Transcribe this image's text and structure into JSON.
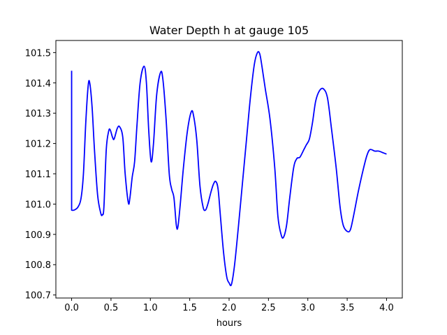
{
  "chart_data": {
    "type": "line",
    "title": "Water Depth h at gauge 105",
    "xlabel": "hours",
    "ylabel": "",
    "xlim": [
      -0.2,
      4.2
    ],
    "ylim": [
      100.69,
      101.54
    ],
    "grid": false,
    "xticks": [
      0.0,
      0.5,
      1.0,
      1.5,
      2.0,
      2.5,
      3.0,
      3.5,
      4.0
    ],
    "xtick_labels": [
      "0.0",
      "0.5",
      "1.0",
      "1.5",
      "2.0",
      "2.5",
      "3.0",
      "3.5",
      "4.0"
    ],
    "yticks": [
      100.7,
      100.8,
      100.9,
      101.0,
      101.1,
      101.2,
      101.3,
      101.4,
      101.5
    ],
    "ytick_labels": [
      "100.7",
      "100.8",
      "100.9",
      "101.0",
      "101.1",
      "101.2",
      "101.3",
      "101.4",
      "101.5"
    ],
    "series": [
      {
        "color": "#0000ff",
        "points": [
          [
            0.0,
            101.44
          ],
          [
            0.0,
            100.98
          ],
          [
            0.03,
            100.98
          ],
          [
            0.08,
            100.99
          ],
          [
            0.12,
            101.02
          ],
          [
            0.15,
            101.1
          ],
          [
            0.18,
            101.27
          ],
          [
            0.21,
            101.39
          ],
          [
            0.23,
            101.4
          ],
          [
            0.26,
            101.32
          ],
          [
            0.29,
            101.18
          ],
          [
            0.33,
            101.03
          ],
          [
            0.37,
            100.97
          ],
          [
            0.39,
            100.965
          ],
          [
            0.41,
            100.99
          ],
          [
            0.44,
            101.18
          ],
          [
            0.47,
            101.24
          ],
          [
            0.49,
            101.245
          ],
          [
            0.52,
            101.22
          ],
          [
            0.54,
            101.215
          ],
          [
            0.58,
            101.25
          ],
          [
            0.61,
            101.255
          ],
          [
            0.65,
            101.22
          ],
          [
            0.68,
            101.1
          ],
          [
            0.72,
            101.005
          ],
          [
            0.74,
            101.02
          ],
          [
            0.77,
            101.09
          ],
          [
            0.8,
            101.14
          ],
          [
            0.83,
            101.26
          ],
          [
            0.87,
            101.4
          ],
          [
            0.92,
            101.455
          ],
          [
            0.95,
            101.4
          ],
          [
            0.98,
            101.24
          ],
          [
            1.01,
            101.14
          ],
          [
            1.04,
            101.2
          ],
          [
            1.08,
            101.36
          ],
          [
            1.13,
            101.435
          ],
          [
            1.16,
            101.41
          ],
          [
            1.2,
            101.28
          ],
          [
            1.24,
            101.1
          ],
          [
            1.27,
            101.05
          ],
          [
            1.3,
            101.02
          ],
          [
            1.33,
            100.93
          ],
          [
            1.35,
            100.925
          ],
          [
            1.38,
            101.0
          ],
          [
            1.42,
            101.12
          ],
          [
            1.47,
            101.24
          ],
          [
            1.52,
            101.305
          ],
          [
            1.55,
            101.29
          ],
          [
            1.59,
            101.21
          ],
          [
            1.63,
            101.06
          ],
          [
            1.67,
            100.99
          ],
          [
            1.7,
            100.98
          ],
          [
            1.73,
            101.0
          ],
          [
            1.77,
            101.04
          ],
          [
            1.8,
            101.065
          ],
          [
            1.83,
            101.075
          ],
          [
            1.86,
            101.05
          ],
          [
            1.89,
            100.96
          ],
          [
            1.93,
            100.84
          ],
          [
            1.97,
            100.76
          ],
          [
            2.0,
            100.74
          ],
          [
            2.03,
            100.735
          ],
          [
            2.07,
            100.8
          ],
          [
            2.12,
            100.93
          ],
          [
            2.17,
            101.07
          ],
          [
            2.22,
            101.21
          ],
          [
            2.27,
            101.35
          ],
          [
            2.32,
            101.46
          ],
          [
            2.36,
            101.5
          ],
          [
            2.39,
            101.495
          ],
          [
            2.42,
            101.45
          ],
          [
            2.46,
            101.38
          ],
          [
            2.52,
            101.28
          ],
          [
            2.58,
            101.12
          ],
          [
            2.62,
            100.96
          ],
          [
            2.66,
            100.9
          ],
          [
            2.69,
            100.89
          ],
          [
            2.73,
            100.93
          ],
          [
            2.77,
            101.02
          ],
          [
            2.82,
            101.12
          ],
          [
            2.86,
            101.15
          ],
          [
            2.9,
            101.155
          ],
          [
            2.95,
            101.18
          ],
          [
            2.98,
            101.195
          ],
          [
            3.02,
            101.215
          ],
          [
            3.06,
            101.27
          ],
          [
            3.1,
            101.34
          ],
          [
            3.15,
            101.375
          ],
          [
            3.2,
            101.38
          ],
          [
            3.25,
            101.35
          ],
          [
            3.3,
            101.25
          ],
          [
            3.36,
            101.12
          ],
          [
            3.41,
            100.99
          ],
          [
            3.45,
            100.93
          ],
          [
            3.5,
            100.91
          ],
          [
            3.54,
            100.915
          ],
          [
            3.58,
            100.96
          ],
          [
            3.64,
            101.04
          ],
          [
            3.7,
            101.11
          ],
          [
            3.75,
            101.16
          ],
          [
            3.79,
            101.18
          ],
          [
            3.85,
            101.175
          ],
          [
            3.9,
            101.175
          ],
          [
            3.95,
            101.17
          ],
          [
            4.0,
            101.165
          ]
        ]
      }
    ]
  }
}
